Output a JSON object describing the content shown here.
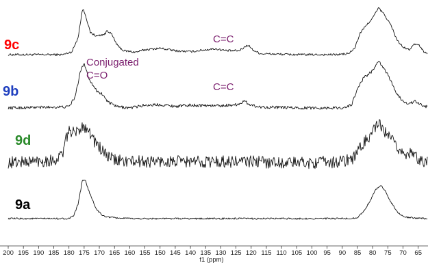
{
  "chart_data": {
    "type": "line",
    "xlabel": "f1 (ppm)",
    "xlim": [
      200,
      62
    ],
    "x_reversed": true,
    "x_ticks": [
      "200",
      "195",
      "190",
      "185",
      "180",
      "175",
      "170",
      "165",
      "160",
      "155",
      "150",
      "145",
      "140",
      "135",
      "130",
      "125",
      "120",
      "115",
      "110",
      "105",
      "100",
      "95",
      "90",
      "85",
      "80",
      "75",
      "70",
      "65"
    ],
    "series": [
      {
        "name": "9c",
        "color": "#ff0000",
        "noise": 0.018,
        "points": [
          [
            200,
            0.0
          ],
          [
            182,
            0.0
          ],
          [
            179,
            0.06
          ],
          [
            177,
            0.35
          ],
          [
            175.5,
            0.94
          ],
          [
            174.5,
            0.8
          ],
          [
            173,
            0.45
          ],
          [
            171,
            0.38
          ],
          [
            168,
            0.42
          ],
          [
            167.5,
            0.5
          ],
          [
            166,
            0.42
          ],
          [
            164,
            0.18
          ],
          [
            162,
            0.08
          ],
          [
            158,
            0.05
          ],
          [
            155,
            0.1
          ],
          [
            150,
            0.13
          ],
          [
            145,
            0.08
          ],
          [
            140,
            0.06
          ],
          [
            135,
            0.1
          ],
          [
            132,
            0.12
          ],
          [
            128,
            0.08
          ],
          [
            124,
            0.08
          ],
          [
            122,
            0.16
          ],
          [
            121,
            0.2
          ],
          [
            119.5,
            0.1
          ],
          [
            117,
            0.02
          ],
          [
            105,
            0.0
          ],
          [
            92,
            0.0
          ],
          [
            88,
            0.02
          ],
          [
            86,
            0.12
          ],
          [
            84,
            0.45
          ],
          [
            82,
            0.6
          ],
          [
            80,
            0.75
          ],
          [
            78,
            0.95
          ],
          [
            76,
            0.8
          ],
          [
            74,
            0.6
          ],
          [
            72,
            0.3
          ],
          [
            70,
            0.15
          ],
          [
            68,
            0.1
          ],
          [
            66,
            0.22
          ],
          [
            64.5,
            0.18
          ],
          [
            63,
            0.05
          ],
          [
            62,
            0.02
          ]
        ]
      },
      {
        "name": "9b",
        "color": "#1f3fbf",
        "noise": 0.022,
        "points": [
          [
            200,
            0.0
          ],
          [
            180,
            0.02
          ],
          [
            178,
            0.2
          ],
          [
            176,
            0.72
          ],
          [
            175,
            0.82
          ],
          [
            173.5,
            0.55
          ],
          [
            171,
            0.32
          ],
          [
            169,
            0.25
          ],
          [
            167,
            0.1
          ],
          [
            164,
            0.02
          ],
          [
            160,
            0.0
          ],
          [
            155,
            0.05
          ],
          [
            150,
            0.06
          ],
          [
            145,
            0.03
          ],
          [
            140,
            0.05
          ],
          [
            130,
            0.04
          ],
          [
            125,
            0.06
          ],
          [
            122,
            0.12
          ],
          [
            121,
            0.08
          ],
          [
            118,
            0.02
          ],
          [
            105,
            0.0
          ],
          [
            90,
            0.0
          ],
          [
            87,
            0.05
          ],
          [
            85,
            0.35
          ],
          [
            83,
            0.55
          ],
          [
            80,
            0.68
          ],
          [
            78,
            0.85
          ],
          [
            76,
            0.7
          ],
          [
            74,
            0.5
          ],
          [
            72,
            0.25
          ],
          [
            70,
            0.12
          ],
          [
            68,
            0.08
          ],
          [
            66,
            0.12
          ],
          [
            64,
            0.05
          ],
          [
            62,
            0.02
          ]
        ]
      },
      {
        "name": "9d",
        "color": "#2a8a2a",
        "noise": 0.12,
        "points": [
          [
            200,
            0.0
          ],
          [
            184,
            0.05
          ],
          [
            182,
            0.2
          ],
          [
            180,
            0.65
          ],
          [
            178,
            0.55
          ],
          [
            176,
            0.7
          ],
          [
            174,
            0.7
          ],
          [
            172,
            0.45
          ],
          [
            170,
            0.3
          ],
          [
            168,
            0.15
          ],
          [
            165,
            0.05
          ],
          [
            160,
            0.02
          ],
          [
            150,
            0.02
          ],
          [
            140,
            0.02
          ],
          [
            130,
            0.02
          ],
          [
            120,
            0.02
          ],
          [
            110,
            0.0
          ],
          [
            100,
            0.0
          ],
          [
            90,
            0.02
          ],
          [
            86,
            0.1
          ],
          [
            84,
            0.3
          ],
          [
            82,
            0.45
          ],
          [
            80,
            0.6
          ],
          [
            78,
            0.75
          ],
          [
            76,
            0.6
          ],
          [
            74,
            0.45
          ],
          [
            72,
            0.3
          ],
          [
            70,
            0.2
          ],
          [
            67,
            0.15
          ],
          [
            64,
            0.05
          ],
          [
            62,
            0.02
          ]
        ]
      },
      {
        "name": "9a",
        "color": "#000000",
        "noise": 0.014,
        "points": [
          [
            200,
            0.0
          ],
          [
            180,
            0.0
          ],
          [
            178.5,
            0.05
          ],
          [
            177,
            0.3
          ],
          [
            175.5,
            0.82
          ],
          [
            174.5,
            0.78
          ],
          [
            173,
            0.5
          ],
          [
            171,
            0.2
          ],
          [
            169,
            0.06
          ],
          [
            166,
            0.02
          ],
          [
            160,
            0.0
          ],
          [
            130,
            0.0
          ],
          [
            100,
            0.0
          ],
          [
            88,
            0.0
          ],
          [
            85,
            0.02
          ],
          [
            83,
            0.15
          ],
          [
            81,
            0.35
          ],
          [
            79,
            0.6
          ],
          [
            77.5,
            0.7
          ],
          [
            76,
            0.6
          ],
          [
            74,
            0.35
          ],
          [
            72,
            0.15
          ],
          [
            70,
            0.04
          ],
          [
            68,
            0.02
          ],
          [
            62,
            0.0
          ]
        ]
      }
    ],
    "annotations": [
      {
        "text": "C=C",
        "trace": "9c",
        "ppm": 125.5
      },
      {
        "text": "Conjugated",
        "trace": "9b",
        "ppm": 167
      },
      {
        "text": "C=O",
        "trace": "9b",
        "ppm": 168
      },
      {
        "text": "C=C",
        "trace": "9b",
        "ppm": 125.5
      }
    ],
    "annotation_color": "#7b1f6e"
  }
}
